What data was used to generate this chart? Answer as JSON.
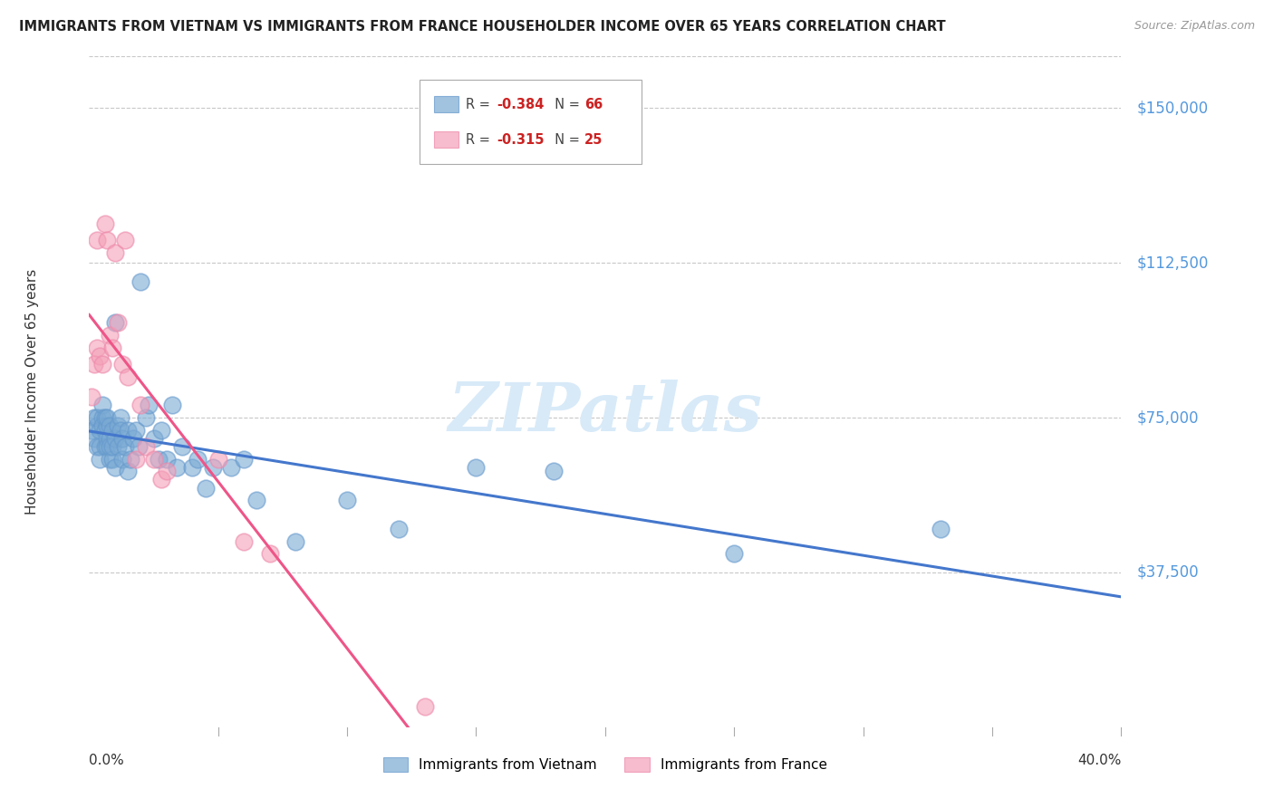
{
  "title": "IMMIGRANTS FROM VIETNAM VS IMMIGRANTS FROM FRANCE HOUSEHOLDER INCOME OVER 65 YEARS CORRELATION CHART",
  "source": "Source: ZipAtlas.com",
  "ylabel": "Householder Income Over 65 years",
  "ytick_labels": [
    "$150,000",
    "$112,500",
    "$75,000",
    "$37,500"
  ],
  "ytick_values": [
    150000,
    112500,
    75000,
    37500
  ],
  "ylim": [
    0,
    162500
  ],
  "xlim": [
    0.0,
    0.4
  ],
  "background_color": "#ffffff",
  "grid_color": "#c8c8c8",
  "watermark": "ZIPatlas",
  "series1_color": "#7aaad4",
  "series2_color": "#f4a0b8",
  "series1_edge": "#6699cc",
  "series2_edge": "#ee88aa",
  "series1_name": "Immigrants from Vietnam",
  "series2_name": "Immigrants from France",
  "reg1_color": "#4477cc",
  "reg2_color": "#ee5588",
  "vietnam_x": [
    0.001,
    0.002,
    0.002,
    0.003,
    0.003,
    0.003,
    0.004,
    0.004,
    0.004,
    0.005,
    0.005,
    0.005,
    0.006,
    0.006,
    0.006,
    0.007,
    0.007,
    0.007,
    0.007,
    0.008,
    0.008,
    0.008,
    0.008,
    0.009,
    0.009,
    0.009,
    0.01,
    0.01,
    0.01,
    0.011,
    0.011,
    0.012,
    0.012,
    0.013,
    0.013,
    0.014,
    0.015,
    0.015,
    0.016,
    0.017,
    0.018,
    0.019,
    0.02,
    0.022,
    0.023,
    0.025,
    0.027,
    0.028,
    0.03,
    0.032,
    0.034,
    0.036,
    0.04,
    0.042,
    0.045,
    0.048,
    0.055,
    0.06,
    0.065,
    0.08,
    0.1,
    0.12,
    0.15,
    0.18,
    0.25,
    0.33
  ],
  "vietnam_y": [
    72000,
    75000,
    70000,
    73000,
    68000,
    75000,
    72000,
    68000,
    65000,
    75000,
    73000,
    78000,
    72000,
    68000,
    75000,
    70000,
    68000,
    73000,
    75000,
    65000,
    70000,
    73000,
    68000,
    72000,
    65000,
    68000,
    98000,
    70000,
    63000,
    73000,
    68000,
    75000,
    72000,
    70000,
    65000,
    68000,
    62000,
    72000,
    65000,
    70000,
    72000,
    68000,
    108000,
    75000,
    78000,
    70000,
    65000,
    72000,
    65000,
    78000,
    63000,
    68000,
    63000,
    65000,
    58000,
    63000,
    63000,
    65000,
    55000,
    45000,
    55000,
    48000,
    63000,
    62000,
    42000,
    48000
  ],
  "france_x": [
    0.001,
    0.002,
    0.003,
    0.003,
    0.004,
    0.005,
    0.006,
    0.007,
    0.008,
    0.009,
    0.01,
    0.011,
    0.013,
    0.014,
    0.015,
    0.018,
    0.02,
    0.022,
    0.025,
    0.028,
    0.03,
    0.05,
    0.06,
    0.07,
    0.13
  ],
  "france_y": [
    80000,
    88000,
    92000,
    118000,
    90000,
    88000,
    122000,
    118000,
    95000,
    92000,
    115000,
    98000,
    88000,
    118000,
    85000,
    65000,
    78000,
    68000,
    65000,
    60000,
    62000,
    65000,
    45000,
    42000,
    5000
  ]
}
